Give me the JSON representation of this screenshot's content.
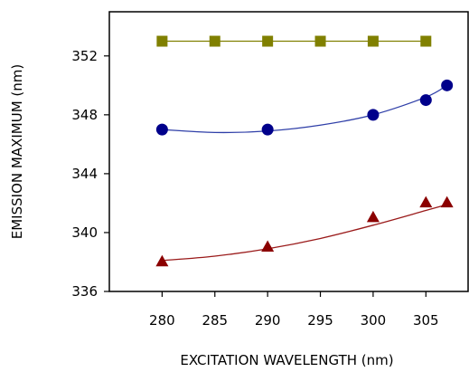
{
  "chart_data": {
    "type": "scatter",
    "title": "",
    "xlabel": "EXCITATION WAVELENGTH (nm)",
    "ylabel": "EMISSION MAXIMUM (nm)",
    "xlim": [
      275,
      309
    ],
    "ylim": [
      336,
      355
    ],
    "x_ticks": [
      280,
      285,
      290,
      295,
      300,
      305
    ],
    "y_ticks": [
      336,
      340,
      344,
      348,
      352
    ],
    "grid": false,
    "legend": "none",
    "series": [
      {
        "marker": "square",
        "color": "#808000",
        "line": "connect",
        "line_color": "#808000",
        "points": [
          {
            "x": 280,
            "y": 353.0
          },
          {
            "x": 285,
            "y": 353.0
          },
          {
            "x": 290,
            "y": 353.0
          },
          {
            "x": 295,
            "y": 353.0
          },
          {
            "x": 300,
            "y": 353.0
          },
          {
            "x": 305,
            "y": 353.0
          }
        ]
      },
      {
        "marker": "circle",
        "color": "#00008b",
        "line": "fit",
        "line_color": "#2f3fa8",
        "points": [
          {
            "x": 280,
            "y": 347.0
          },
          {
            "x": 290,
            "y": 347.0
          },
          {
            "x": 300,
            "y": 348.0
          },
          {
            "x": 305,
            "y": 349.0
          },
          {
            "x": 307,
            "y": 350.0
          }
        ],
        "fit_curve": [
          {
            "x": 280,
            "y": 347.0
          },
          {
            "x": 285,
            "y": 346.8
          },
          {
            "x": 290,
            "y": 346.9
          },
          {
            "x": 295,
            "y": 347.3
          },
          {
            "x": 300,
            "y": 348.0
          },
          {
            "x": 305,
            "y": 349.2
          },
          {
            "x": 307,
            "y": 350.0
          }
        ]
      },
      {
        "marker": "triangle",
        "color": "#8b0000",
        "line": "fit",
        "line_color": "#9a1a1a",
        "points": [
          {
            "x": 280,
            "y": 338.0
          },
          {
            "x": 290,
            "y": 339.0
          },
          {
            "x": 300,
            "y": 341.0
          },
          {
            "x": 305,
            "y": 342.0
          },
          {
            "x": 307,
            "y": 342.0
          }
        ],
        "fit_curve": [
          {
            "x": 280,
            "y": 338.1
          },
          {
            "x": 285,
            "y": 338.4
          },
          {
            "x": 290,
            "y": 338.9
          },
          {
            "x": 295,
            "y": 339.6
          },
          {
            "x": 300,
            "y": 340.5
          },
          {
            "x": 305,
            "y": 341.5
          },
          {
            "x": 307,
            "y": 341.9
          }
        ]
      }
    ]
  }
}
